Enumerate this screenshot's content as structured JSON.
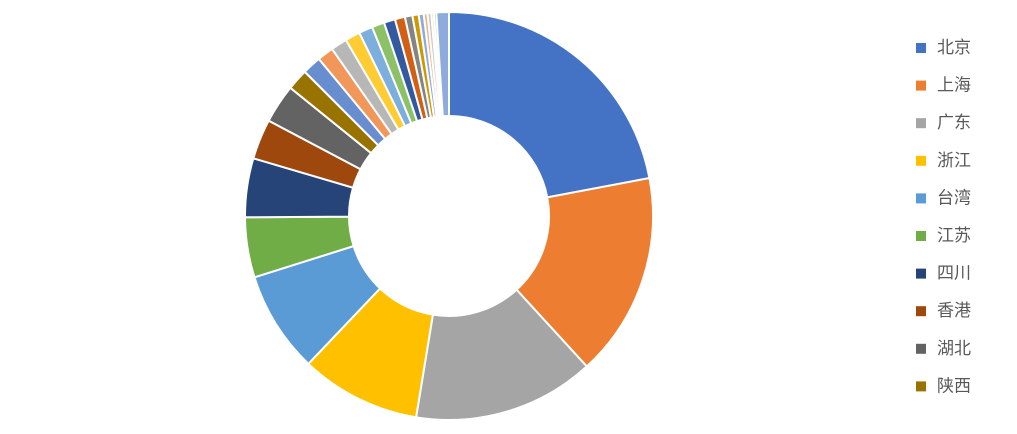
{
  "chart_data": {
    "type": "donut",
    "categories": [
      "北京",
      "上海",
      "广东",
      "浙江",
      "台湾",
      "江苏",
      "四川",
      "香港",
      "湖北",
      "陕西",
      null,
      null,
      null,
      null,
      null,
      null,
      null,
      null,
      null,
      null,
      null,
      null,
      null,
      null,
      null,
      null
    ],
    "values": [
      22.2,
      16.3,
      14.5,
      9.6,
      8.1,
      4.8,
      4.7,
      3.2,
      3.1,
      1.7,
      1.5,
      1.3,
      1.3,
      1.2,
      1.1,
      1.0,
      0.9,
      0.8,
      0.6,
      0.5,
      0.4,
      0.3,
      0.3,
      0.2,
      0.2,
      1.0
    ],
    "colors": [
      "#4472c4",
      "#ed7d31",
      "#a5a5a5",
      "#ffc000",
      "#5b9bd5",
      "#70ad47",
      "#264478",
      "#9e480e",
      "#636363",
      "#997300",
      "#698ed0",
      "#f1975a",
      "#b7b7b7",
      "#ffcd33",
      "#7cafdd",
      "#8cc168",
      "#335aa1",
      "#d26012",
      "#848484",
      "#cc9a00",
      "#8faadc",
      "#f4b183",
      "#c9c9c9",
      "#ffd966",
      "#9dc3e6",
      "#8faadc"
    ],
    "legend": "right"
  }
}
